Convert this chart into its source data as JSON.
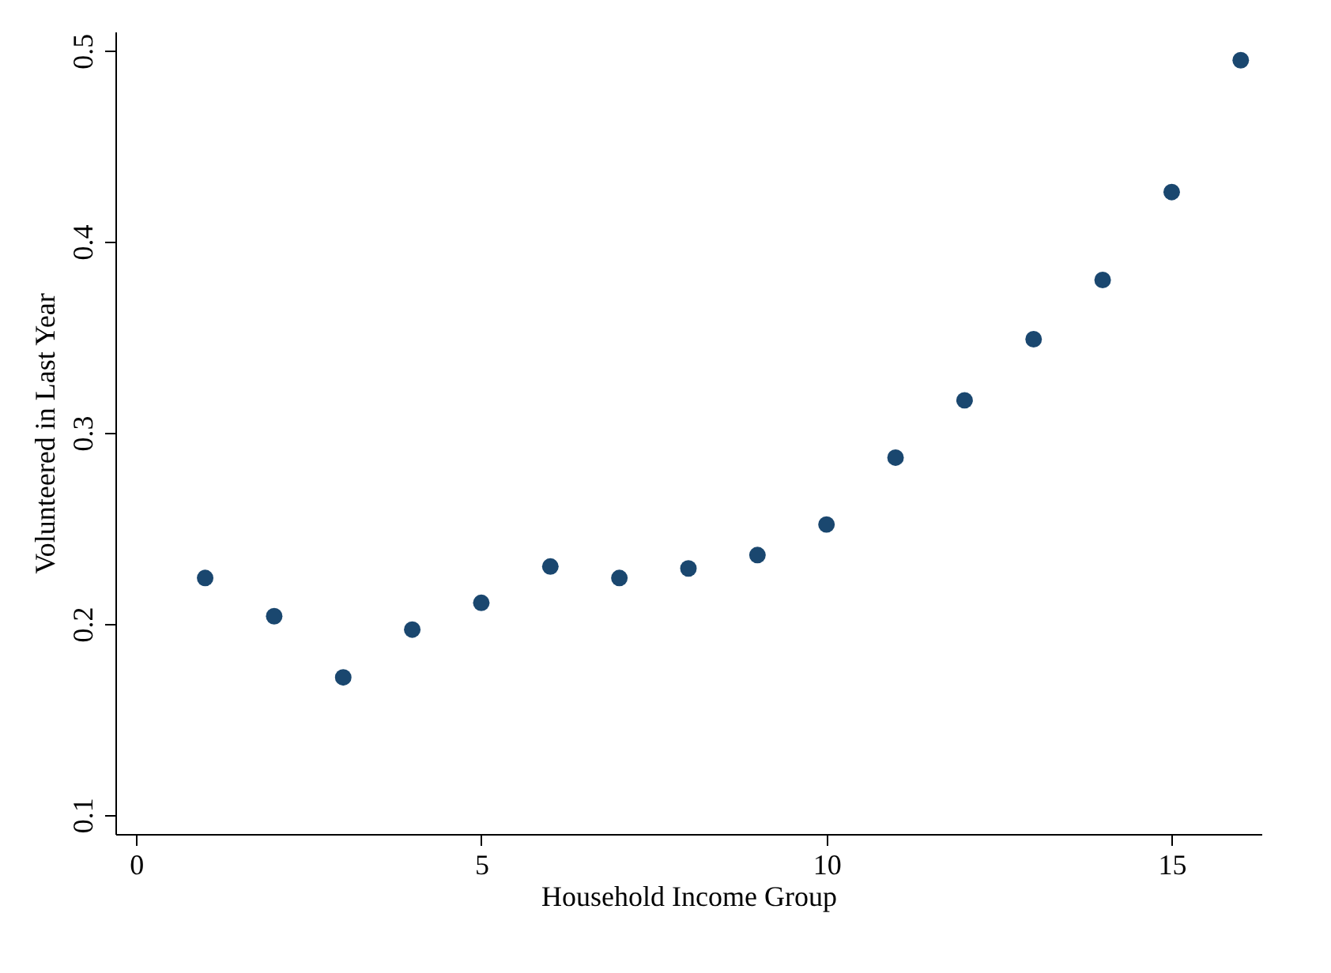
{
  "chart_data": {
    "type": "scatter",
    "xlabel": "Household Income Group",
    "ylabel": "Volunteered in Last Year",
    "x": [
      1,
      2,
      3,
      4,
      5,
      6,
      7,
      8,
      9,
      10,
      11,
      12,
      13,
      14,
      15,
      16
    ],
    "series": [
      {
        "color": "#1a476f",
        "values": [
          0.224,
          0.204,
          0.172,
          0.197,
          0.211,
          0.23,
          0.224,
          0.229,
          0.236,
          0.252,
          0.287,
          0.317,
          0.349,
          0.38,
          0.426,
          0.495
        ]
      }
    ],
    "xlim": [
      -0.3,
      16.3
    ],
    "xticks": [
      0,
      5,
      10,
      15
    ],
    "ylim": [
      0.09,
      0.51
    ],
    "yticks": [
      0.1,
      0.2,
      0.3,
      0.4,
      0.5
    ],
    "marker": "circle",
    "grid": false,
    "legend": false
  }
}
